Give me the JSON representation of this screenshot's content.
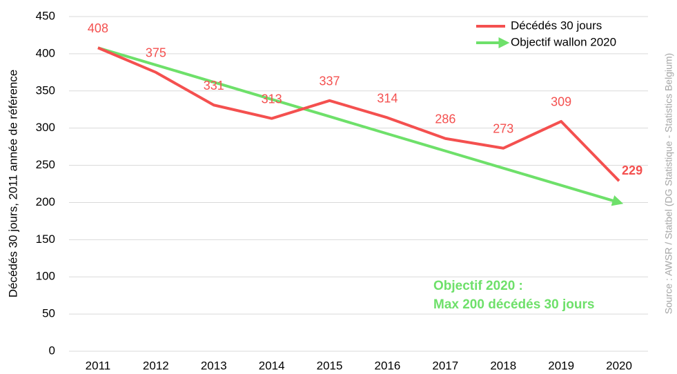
{
  "chart_data": {
    "type": "line",
    "y_label": "Décédés 30 jours, 2011 année de référence",
    "source": "Source : AWSR / Statbel (DG Statistique  -  Statistics Belgium)",
    "annotations": [
      "Objectif 2020 :",
      "Max 200 décédés 30 jours"
    ],
    "annotation_color": "#6ee06a",
    "categories": [
      "2011",
      "2012",
      "2013",
      "2014",
      "2015",
      "2016",
      "2017",
      "2018",
      "2019",
      "2020"
    ],
    "series": [
      {
        "name": "Décédés 30 jours",
        "color": "#f4504f",
        "data_labels": true,
        "values": [
          408,
          375,
          331,
          313,
          337,
          314,
          286,
          273,
          309,
          229
        ]
      },
      {
        "name": "Objectif wallon 2020",
        "color": "#6ee06a",
        "arrow": true,
        "values": [
          408,
          384.9,
          361.8,
          338.7,
          315.6,
          292.4,
          269.3,
          246.2,
          223.1,
          200
        ]
      }
    ],
    "ylim": [
      0,
      450
    ],
    "yticks": [
      0,
      50,
      100,
      150,
      200,
      250,
      300,
      350,
      400,
      450
    ],
    "grid": true,
    "legend": "top-right"
  }
}
